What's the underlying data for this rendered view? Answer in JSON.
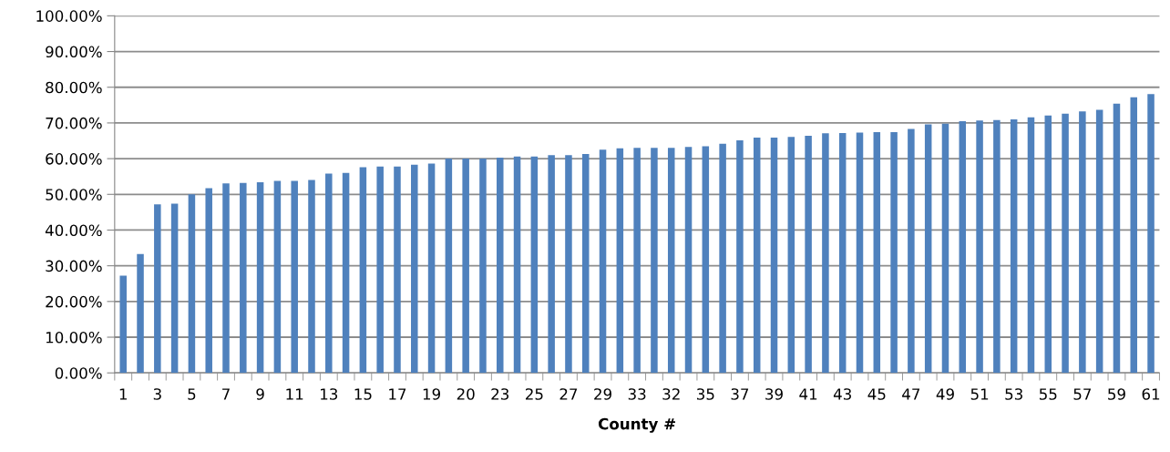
{
  "chart_data": {
    "type": "bar",
    "xlabel": "County #",
    "categories": [
      "1",
      null,
      "3",
      null,
      "5",
      null,
      "7",
      null,
      "9",
      null,
      "11",
      null,
      "13",
      null,
      "15",
      null,
      "17",
      null,
      "19",
      null,
      "20",
      null,
      "23",
      null,
      "25",
      null,
      "27",
      null,
      "29",
      null,
      "33",
      null,
      "32",
      null,
      "35",
      null,
      "37",
      null,
      "39",
      null,
      "41",
      null,
      "43",
      null,
      "45",
      null,
      "47",
      null,
      "49",
      null,
      "51",
      null,
      "53",
      null,
      "55",
      null,
      "57",
      null,
      "59",
      null,
      "61"
    ],
    "values": [
      27.2,
      33.3,
      47.2,
      47.4,
      50.0,
      51.7,
      53.1,
      53.2,
      53.4,
      53.8,
      53.8,
      54.0,
      55.8,
      56.0,
      57.6,
      57.8,
      57.8,
      58.3,
      58.6,
      60.0,
      60.0,
      60.0,
      60.3,
      60.6,
      60.6,
      61.0,
      61.0,
      61.3,
      62.5,
      62.9,
      63.0,
      63.0,
      63.0,
      63.3,
      63.5,
      64.2,
      65.1,
      65.9,
      65.9,
      66.1,
      66.4,
      67.1,
      67.2,
      67.3,
      67.4,
      67.4,
      68.3,
      69.6,
      69.8,
      70.5,
      70.7,
      70.8,
      71.0,
      71.6,
      72.1,
      72.6,
      73.2,
      73.7,
      75.4,
      77.2,
      78.1
    ],
    "color": "#4f81bd",
    "ylim": [
      0,
      100
    ],
    "yticks": [
      {
        "value": 0,
        "label": "0.00%"
      },
      {
        "value": 10,
        "label": "10.00%"
      },
      {
        "value": 20,
        "label": "20.00%"
      },
      {
        "value": 30,
        "label": "30.00%"
      },
      {
        "value": 40,
        "label": "40.00%"
      },
      {
        "value": 50,
        "label": "50.00%"
      },
      {
        "value": 60,
        "label": "60.00%"
      },
      {
        "value": 70,
        "label": "70.00%"
      },
      {
        "value": 80,
        "label": "80.00%"
      },
      {
        "value": 90,
        "label": "90.00%"
      },
      {
        "value": 100,
        "label": "100.00%"
      }
    ],
    "grid": "y"
  }
}
